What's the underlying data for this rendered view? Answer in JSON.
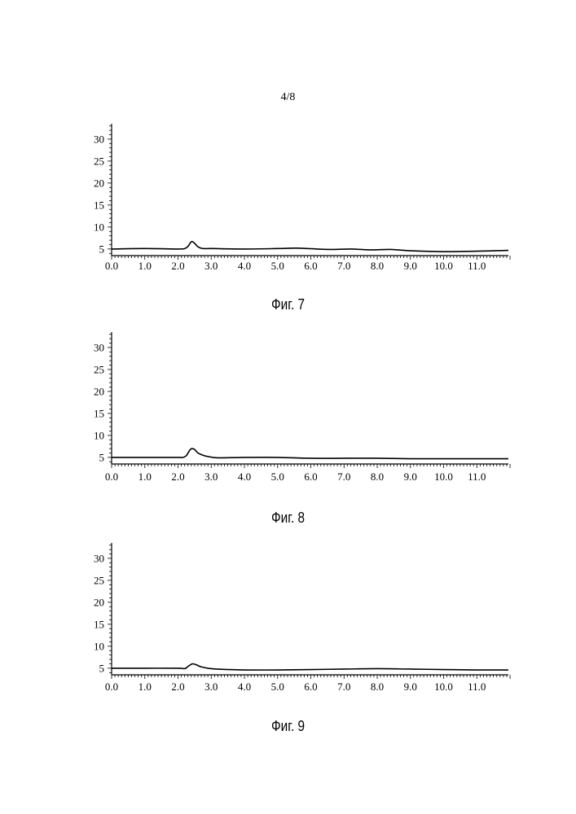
{
  "page": {
    "number": "4/8"
  },
  "chart_data": [
    {
      "type": "line",
      "caption": "Фиг. 7",
      "xlim": [
        0.0,
        11.95
      ],
      "ylim": [
        3.5,
        33.5
      ],
      "x_ticks": [
        0.0,
        1.0,
        2.0,
        3.0,
        4.0,
        5.0,
        6.0,
        7.0,
        8.0,
        9.0,
        10.0,
        11.0
      ],
      "x_tick_labels": [
        "0.0",
        "1.0",
        "2.0",
        "3.0",
        "4.0",
        "5.0",
        "6.0",
        "7.0",
        "8.0",
        "9.0",
        "10.0",
        "11.0"
      ],
      "y_ticks": [
        5,
        10,
        15,
        20,
        25,
        30
      ],
      "y_tick_labels": [
        "5",
        "10",
        "15",
        "20",
        "25",
        "30"
      ],
      "series": [
        {
          "x": [
            0.0,
            1.0,
            2.0,
            2.2,
            2.3,
            2.38,
            2.43,
            2.5,
            2.6,
            2.75,
            3.0,
            4.0,
            5.0,
            5.6,
            6.5,
            7.2,
            7.8,
            8.4,
            9.0,
            10.0,
            11.0,
            11.95
          ],
          "y": [
            5.0,
            5.1,
            5.0,
            5.1,
            5.6,
            6.5,
            6.7,
            6.3,
            5.5,
            5.1,
            5.1,
            5.0,
            5.1,
            5.2,
            4.9,
            5.0,
            4.8,
            4.9,
            4.6,
            4.4,
            4.5,
            4.7
          ]
        }
      ]
    },
    {
      "type": "line",
      "caption": "Фиг. 8",
      "xlim": [
        0.0,
        11.95
      ],
      "ylim": [
        3.5,
        33.5
      ],
      "x_ticks": [
        0.0,
        1.0,
        2.0,
        3.0,
        4.0,
        5.0,
        6.0,
        7.0,
        8.0,
        9.0,
        10.0,
        11.0
      ],
      "x_tick_labels": [
        "0.0",
        "1.0",
        "2.0",
        "3.0",
        "4.0",
        "5.0",
        "6.0",
        "7.0",
        "8.0",
        "9.0",
        "10.0",
        "11.0"
      ],
      "y_ticks": [
        5,
        10,
        15,
        20,
        25,
        30
      ],
      "y_tick_labels": [
        "5",
        "10",
        "15",
        "20",
        "25",
        "30"
      ],
      "series": [
        {
          "x": [
            0.0,
            1.0,
            2.0,
            2.15,
            2.25,
            2.35,
            2.42,
            2.5,
            2.6,
            2.75,
            2.9,
            3.2,
            4.0,
            5.0,
            6.0,
            7.0,
            8.0,
            9.0,
            10.0,
            11.0,
            11.95
          ],
          "y": [
            5.0,
            5.0,
            5.0,
            5.0,
            5.4,
            6.6,
            7.0,
            6.8,
            6.0,
            5.5,
            5.2,
            4.9,
            5.0,
            5.0,
            4.8,
            4.8,
            4.8,
            4.7,
            4.7,
            4.7,
            4.7
          ]
        }
      ]
    },
    {
      "type": "line",
      "caption": "Фиг. 9",
      "xlim": [
        0.0,
        11.95
      ],
      "ylim": [
        3.5,
        33.5
      ],
      "x_ticks": [
        0.0,
        1.0,
        2.0,
        3.0,
        4.0,
        5.0,
        6.0,
        7.0,
        8.0,
        9.0,
        10.0,
        11.0
      ],
      "x_tick_labels": [
        "0.0",
        "1.0",
        "2.0",
        "3.0",
        "4.0",
        "5.0",
        "6.0",
        "7.0",
        "8.0",
        "9.0",
        "10.0",
        "11.0"
      ],
      "y_ticks": [
        5,
        10,
        15,
        20,
        25,
        30
      ],
      "y_tick_labels": [
        "5",
        "10",
        "15",
        "20",
        "25",
        "30"
      ],
      "series": [
        {
          "x": [
            0.0,
            1.0,
            2.0,
            2.2,
            2.3,
            2.4,
            2.45,
            2.55,
            2.7,
            3.0,
            3.5,
            4.0,
            5.0,
            6.0,
            7.0,
            8.0,
            9.0,
            10.0,
            11.0,
            11.95
          ],
          "y": [
            5.0,
            5.0,
            5.0,
            4.9,
            5.4,
            5.9,
            6.0,
            5.8,
            5.3,
            4.9,
            4.7,
            4.6,
            4.6,
            4.7,
            4.8,
            4.9,
            4.8,
            4.7,
            4.6,
            4.6
          ]
        }
      ]
    }
  ]
}
